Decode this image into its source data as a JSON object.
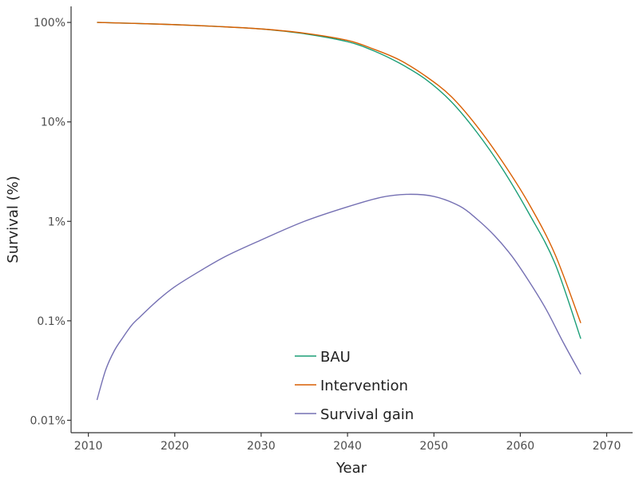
{
  "chart_data": {
    "type": "line",
    "title": "",
    "xlabel": "Year",
    "ylabel": "Survival (%)",
    "xlim": [
      2008,
      2073
    ],
    "ylim": [
      0.0075,
      145
    ],
    "yscale": "log",
    "x_ticks": [
      2010,
      2020,
      2030,
      2040,
      2050,
      2060,
      2070
    ],
    "y_ticks": [
      {
        "value": 100,
        "label": "100%"
      },
      {
        "value": 10,
        "label": "10%"
      },
      {
        "value": 1,
        "label": "1%"
      },
      {
        "value": 0.1,
        "label": "0.1%"
      },
      {
        "value": 0.01,
        "label": "0.01%"
      }
    ],
    "grid": false,
    "legend_position": "bottom-center",
    "series": [
      {
        "name": "BAU",
        "color": "#1b9e77",
        "points": [
          [
            2011,
            100
          ],
          [
            2015,
            98
          ],
          [
            2020,
            95
          ],
          [
            2025,
            91
          ],
          [
            2030,
            86
          ],
          [
            2035,
            77
          ],
          [
            2040,
            64
          ],
          [
            2043,
            52
          ],
          [
            2046,
            39
          ],
          [
            2049,
            27
          ],
          [
            2052,
            16
          ],
          [
            2055,
            7.8
          ],
          [
            2058,
            3.3
          ],
          [
            2061,
            1.2
          ],
          [
            2064,
            0.38
          ],
          [
            2067,
            0.066
          ]
        ]
      },
      {
        "name": "Intervention",
        "color": "#d95f02",
        "points": [
          [
            2011,
            100
          ],
          [
            2015,
            98
          ],
          [
            2020,
            95
          ],
          [
            2025,
            91
          ],
          [
            2030,
            86
          ],
          [
            2035,
            78
          ],
          [
            2040,
            66
          ],
          [
            2043,
            54
          ],
          [
            2046,
            42
          ],
          [
            2049,
            29
          ],
          [
            2052,
            18
          ],
          [
            2055,
            9
          ],
          [
            2058,
            3.9
          ],
          [
            2061,
            1.5
          ],
          [
            2064,
            0.47
          ],
          [
            2067,
            0.095
          ]
        ]
      },
      {
        "name": "Survival gain",
        "color": "#7570b3",
        "points": [
          [
            2011,
            0.016
          ],
          [
            2012,
            0.032
          ],
          [
            2013,
            0.05
          ],
          [
            2014,
            0.068
          ],
          [
            2015,
            0.09
          ],
          [
            2016,
            0.11
          ],
          [
            2018,
            0.16
          ],
          [
            2020,
            0.22
          ],
          [
            2023,
            0.32
          ],
          [
            2026,
            0.45
          ],
          [
            2030,
            0.65
          ],
          [
            2035,
            1.0
          ],
          [
            2040,
            1.4
          ],
          [
            2044,
            1.75
          ],
          [
            2047,
            1.87
          ],
          [
            2050,
            1.78
          ],
          [
            2053,
            1.42
          ],
          [
            2055,
            1.05
          ],
          [
            2057,
            0.72
          ],
          [
            2059,
            0.45
          ],
          [
            2061,
            0.25
          ],
          [
            2063,
            0.13
          ],
          [
            2065,
            0.06
          ],
          [
            2067,
            0.029
          ]
        ]
      }
    ]
  }
}
